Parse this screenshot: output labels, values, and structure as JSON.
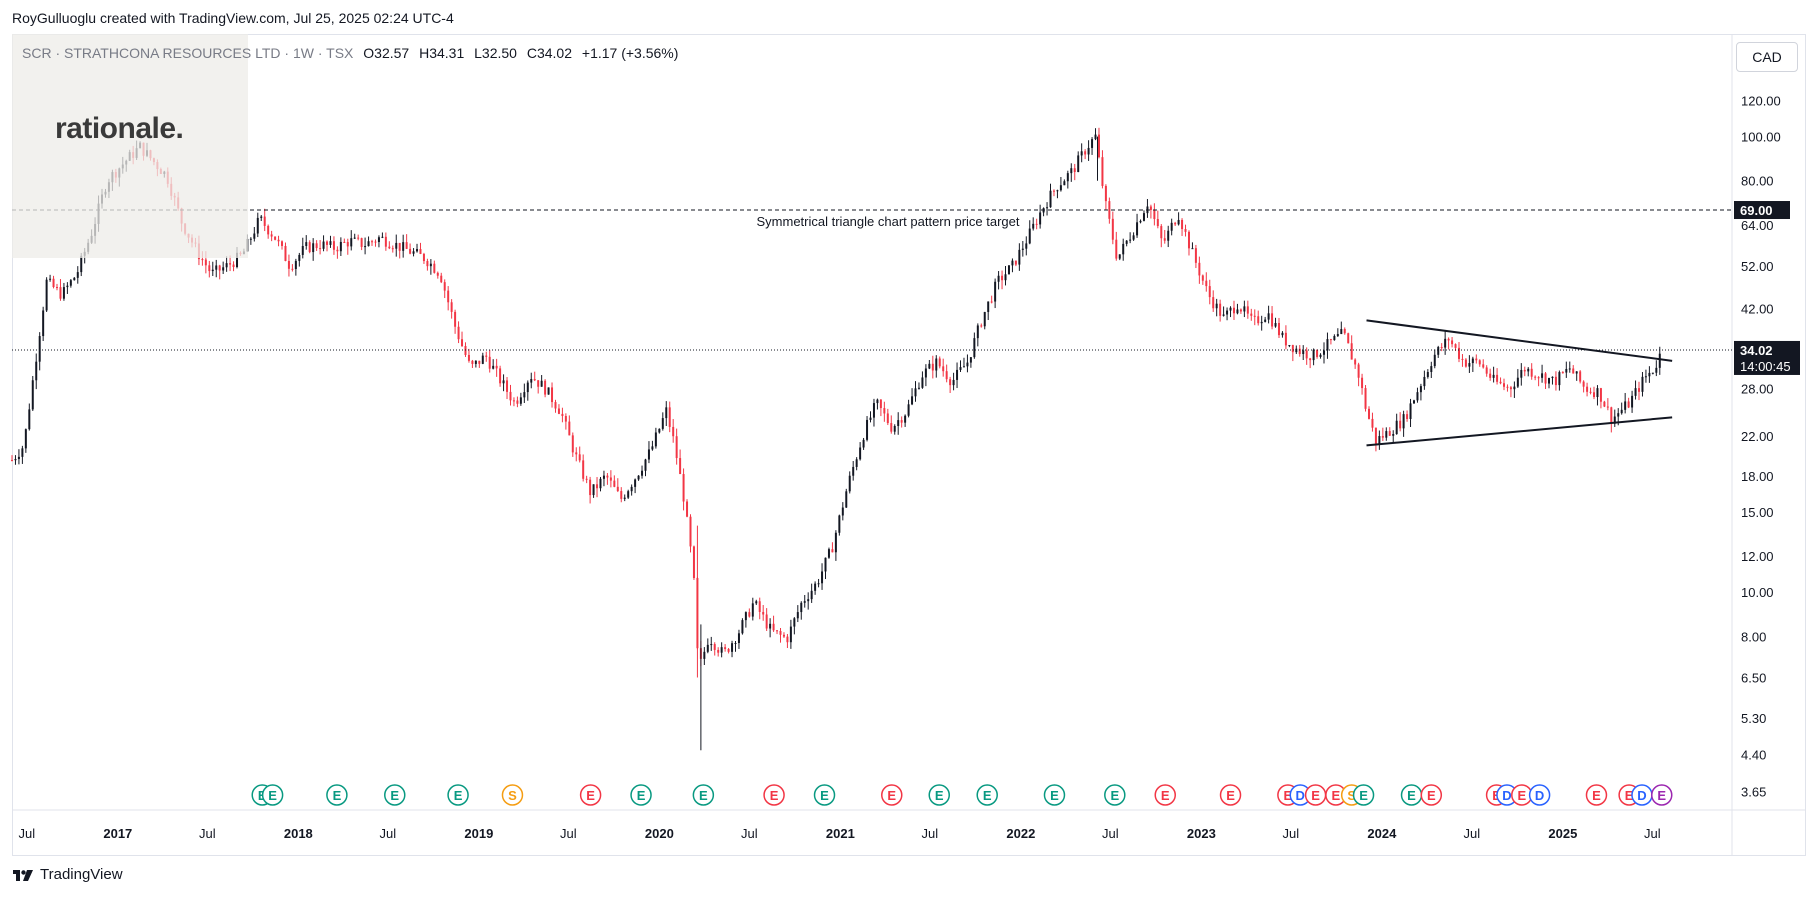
{
  "header": {
    "credit": "RoyGulluoglu created with TradingView.com, Jul 25, 2025 02:24 UTC-4"
  },
  "legend": {
    "symbol": "SCR · STRATHCONA RESOURCES LTD · 1W · TSX",
    "open": "O32.57",
    "high": "H34.31",
    "low": "L32.50",
    "close": "C34.02",
    "change": "+1.17 (+3.56%)"
  },
  "watermark": {
    "text": "rationale."
  },
  "currency_button": {
    "label": "CAD"
  },
  "price_labels": {
    "target": "69.00",
    "last": "34.02",
    "countdown": "14:00:45"
  },
  "footer": {
    "brand": "TradingView"
  },
  "colors": {
    "up": "#131722",
    "down": "#f23645",
    "earnings": "#f23645",
    "dividend": "#2962ff",
    "split": "#f59d12",
    "frame": "#e0e3eb"
  },
  "chart_data": {
    "type": "candlestick",
    "symbol": "SCR",
    "interval": "1W",
    "yscale": "log",
    "ylim": [
      3.5,
      140
    ],
    "y_ticks": [
      120,
      100,
      80,
      64,
      52,
      42,
      34,
      28,
      22,
      18,
      15,
      12,
      10,
      8,
      6.5,
      5.3,
      4.4,
      3.65
    ],
    "y_tick_labels": [
      "120.00",
      "100.00",
      "80.00",
      "64.00",
      "52.00",
      "42.00",
      "34.00",
      "28.00",
      "22.00",
      "18.00",
      "15.00",
      "12.00",
      "10.00",
      "8.00",
      "6.50",
      "5.30",
      "4.40",
      "3.65"
    ],
    "x_ticks": [
      {
        "label": "Jul",
        "date": "2016-07-01",
        "year": false
      },
      {
        "label": "2017",
        "date": "2017-01-01",
        "year": true
      },
      {
        "label": "Jul",
        "date": "2017-07-01",
        "year": false
      },
      {
        "label": "2018",
        "date": "2018-01-01",
        "year": true
      },
      {
        "label": "Jul",
        "date": "2018-07-01",
        "year": false
      },
      {
        "label": "2019",
        "date": "2019-01-01",
        "year": true
      },
      {
        "label": "Jul",
        "date": "2019-07-01",
        "year": false
      },
      {
        "label": "2020",
        "date": "2020-01-01",
        "year": true
      },
      {
        "label": "Jul",
        "date": "2020-07-01",
        "year": false
      },
      {
        "label": "2021",
        "date": "2021-01-01",
        "year": true
      },
      {
        "label": "Jul",
        "date": "2021-07-01",
        "year": false
      },
      {
        "label": "2022",
        "date": "2022-01-01",
        "year": true
      },
      {
        "label": "Jul",
        "date": "2022-07-01",
        "year": false
      },
      {
        "label": "2023",
        "date": "2023-01-01",
        "year": true
      },
      {
        "label": "Jul",
        "date": "2023-07-01",
        "year": false
      },
      {
        "label": "2024",
        "date": "2024-01-01",
        "year": true
      },
      {
        "label": "Jul",
        "date": "2024-07-01",
        "year": false
      },
      {
        "label": "2025",
        "date": "2025-01-01",
        "year": true
      },
      {
        "label": "Jul",
        "date": "2025-07-01",
        "year": false
      }
    ],
    "x_range": [
      "2016-06-01",
      "2025-12-05"
    ],
    "price_path": [
      [
        "2016-06-01",
        19.5
      ],
      [
        "2016-06-25",
        21
      ],
      [
        "2016-07-20",
        33
      ],
      [
        "2016-08-10",
        48
      ],
      [
        "2016-09-10",
        45
      ],
      [
        "2016-10-10",
        50
      ],
      [
        "2016-11-10",
        62
      ],
      [
        "2016-12-10",
        80
      ],
      [
        "2017-01-15",
        88
      ],
      [
        "2017-02-15",
        95
      ],
      [
        "2017-03-15",
        88
      ],
      [
        "2017-04-10",
        82
      ],
      [
        "2017-05-10",
        65
      ],
      [
        "2017-06-10",
        56
      ],
      [
        "2017-07-10",
        50
      ],
      [
        "2017-08-10",
        52
      ],
      [
        "2017-09-10",
        55
      ],
      [
        "2017-10-15",
        66
      ],
      [
        "2017-11-15",
        60
      ],
      [
        "2017-12-15",
        52
      ],
      [
        "2018-01-15",
        57
      ],
      [
        "2018-02-15",
        58
      ],
      [
        "2018-03-15",
        57
      ],
      [
        "2018-04-15",
        59
      ],
      [
        "2018-05-15",
        58
      ],
      [
        "2018-06-15",
        60
      ],
      [
        "2018-07-15",
        58
      ],
      [
        "2018-08-15",
        56
      ],
      [
        "2018-09-15",
        54
      ],
      [
        "2018-10-15",
        50
      ],
      [
        "2018-11-15",
        38
      ],
      [
        "2018-12-15",
        31
      ],
      [
        "2019-01-15",
        33
      ],
      [
        "2019-02-15",
        29
      ],
      [
        "2019-03-15",
        26
      ],
      [
        "2019-04-15",
        30
      ],
      [
        "2019-05-15",
        28
      ],
      [
        "2019-06-15",
        25
      ],
      [
        "2019-07-15",
        20
      ],
      [
        "2019-08-15",
        16.5
      ],
      [
        "2019-09-15",
        18
      ],
      [
        "2019-10-15",
        16
      ],
      [
        "2019-11-15",
        18
      ],
      [
        "2019-12-15",
        20.5
      ],
      [
        "2020-01-15",
        25
      ],
      [
        "2020-02-01",
        21
      ],
      [
        "2020-02-20",
        16
      ],
      [
        "2020-03-10",
        11
      ],
      [
        "2020-03-20",
        6.7
      ],
      [
        "2020-04-10",
        8
      ],
      [
        "2020-05-10",
        7.3
      ],
      [
        "2020-06-10",
        8.2
      ],
      [
        "2020-07-10",
        9.5
      ],
      [
        "2020-08-15",
        8.2
      ],
      [
        "2020-09-15",
        7.9
      ],
      [
        "2020-10-15",
        9.5
      ],
      [
        "2020-11-15",
        10.5
      ],
      [
        "2020-12-15",
        12.5
      ],
      [
        "2021-01-15",
        17
      ],
      [
        "2021-02-15",
        22
      ],
      [
        "2021-03-15",
        26
      ],
      [
        "2021-04-15",
        23
      ],
      [
        "2021-05-15",
        25
      ],
      [
        "2021-06-15",
        30
      ],
      [
        "2021-07-15",
        32
      ],
      [
        "2021-08-15",
        29
      ],
      [
        "2021-09-15",
        32
      ],
      [
        "2021-10-15",
        40
      ],
      [
        "2021-11-15",
        48
      ],
      [
        "2021-12-15",
        52
      ],
      [
        "2022-01-15",
        60
      ],
      [
        "2022-02-15",
        70
      ],
      [
        "2022-03-15",
        78
      ],
      [
        "2022-04-15",
        84
      ],
      [
        "2022-05-15",
        95
      ],
      [
        "2022-06-01",
        100
      ],
      [
        "2022-06-20",
        72
      ],
      [
        "2022-07-15",
        54
      ],
      [
        "2022-08-15",
        62
      ],
      [
        "2022-09-15",
        72
      ],
      [
        "2022-10-15",
        58
      ],
      [
        "2022-11-15",
        68
      ],
      [
        "2022-12-15",
        55
      ],
      [
        "2023-01-15",
        45
      ],
      [
        "2023-02-15",
        40
      ],
      [
        "2023-03-15",
        43
      ],
      [
        "2023-04-15",
        39
      ],
      [
        "2023-05-15",
        41
      ],
      [
        "2023-06-15",
        36
      ],
      [
        "2023-07-15",
        34
      ],
      [
        "2023-08-15",
        33
      ],
      [
        "2023-09-15",
        35
      ],
      [
        "2023-10-15",
        37
      ],
      [
        "2023-11-15",
        30
      ],
      [
        "2023-12-01",
        25
      ],
      [
        "2023-12-20",
        21.5
      ],
      [
        "2024-01-15",
        22.5
      ],
      [
        "2024-02-15",
        24
      ],
      [
        "2024-03-15",
        28
      ],
      [
        "2024-04-15",
        33
      ],
      [
        "2024-05-15",
        36
      ],
      [
        "2024-06-15",
        32
      ],
      [
        "2024-07-15",
        32
      ],
      [
        "2024-08-15",
        29
      ],
      [
        "2024-09-15",
        28
      ],
      [
        "2024-10-15",
        31
      ],
      [
        "2024-11-15",
        30
      ],
      [
        "2024-12-15",
        29
      ],
      [
        "2025-01-15",
        31
      ],
      [
        "2025-02-15",
        28
      ],
      [
        "2025-03-15",
        27.5
      ],
      [
        "2025-04-10",
        24
      ],
      [
        "2025-05-15",
        26
      ],
      [
        "2025-06-15",
        29.5
      ],
      [
        "2025-07-05",
        31
      ],
      [
        "2025-07-21",
        34.02
      ]
    ],
    "annotations": [
      {
        "type": "hline",
        "price": 69.0,
        "style": "dashed",
        "text": "Symmetrical triangle chart pattern price target"
      },
      {
        "type": "hline",
        "price": 34.02,
        "style": "dotted"
      },
      {
        "type": "trendline",
        "name": "upper",
        "from": [
          "2023-12-01",
          39.5
        ],
        "to": [
          "2025-08-10",
          32.2
        ]
      },
      {
        "type": "trendline",
        "name": "lower",
        "from": [
          "2023-12-01",
          21.0
        ],
        "to": [
          "2025-08-10",
          24.2
        ]
      }
    ],
    "events": [
      {
        "date": "2017-10-20",
        "type": "E",
        "color": "green"
      },
      {
        "date": "2017-11-10",
        "type": "E",
        "color": "green"
      },
      {
        "date": "2018-03-20",
        "type": "E",
        "color": "green"
      },
      {
        "date": "2018-07-15",
        "type": "E",
        "color": "green"
      },
      {
        "date": "2018-11-20",
        "type": "E",
        "color": "green"
      },
      {
        "date": "2019-03-10",
        "type": "S",
        "color": "orange"
      },
      {
        "date": "2019-08-15",
        "type": "E",
        "color": "red"
      },
      {
        "date": "2019-11-25",
        "type": "E",
        "color": "green"
      },
      {
        "date": "2020-03-30",
        "type": "E",
        "color": "green"
      },
      {
        "date": "2020-08-20",
        "type": "E",
        "color": "red"
      },
      {
        "date": "2020-11-30",
        "type": "E",
        "color": "green"
      },
      {
        "date": "2021-04-15",
        "type": "E",
        "color": "red"
      },
      {
        "date": "2021-07-20",
        "type": "E",
        "color": "green"
      },
      {
        "date": "2021-10-25",
        "type": "E",
        "color": "green"
      },
      {
        "date": "2022-03-10",
        "type": "E",
        "color": "green"
      },
      {
        "date": "2022-07-10",
        "type": "E",
        "color": "green"
      },
      {
        "date": "2022-10-20",
        "type": "E",
        "color": "red"
      },
      {
        "date": "2023-03-01",
        "type": "E",
        "color": "red"
      },
      {
        "date": "2023-06-25",
        "type": "E",
        "color": "red"
      },
      {
        "date": "2023-07-20",
        "type": "D",
        "color": "blue"
      },
      {
        "date": "2023-08-20",
        "type": "E",
        "color": "red"
      },
      {
        "date": "2023-09-30",
        "type": "E",
        "color": "red"
      },
      {
        "date": "2023-11-01",
        "type": "S",
        "color": "orange"
      },
      {
        "date": "2023-11-25",
        "type": "E",
        "color": "green"
      },
      {
        "date": "2024-03-01",
        "type": "E",
        "color": "green"
      },
      {
        "date": "2024-04-10",
        "type": "E",
        "color": "red"
      },
      {
        "date": "2024-08-20",
        "type": "E",
        "color": "red"
      },
      {
        "date": "2024-09-10",
        "type": "D",
        "color": "blue"
      },
      {
        "date": "2024-10-10",
        "type": "E",
        "color": "red"
      },
      {
        "date": "2024-11-15",
        "type": "D",
        "color": "blue"
      },
      {
        "date": "2025-03-10",
        "type": "E",
        "color": "red"
      },
      {
        "date": "2025-05-15",
        "type": "E",
        "color": "red"
      },
      {
        "date": "2025-06-10",
        "type": "D",
        "color": "blue"
      },
      {
        "date": "2025-07-20",
        "type": "E",
        "color": "purple"
      }
    ]
  }
}
